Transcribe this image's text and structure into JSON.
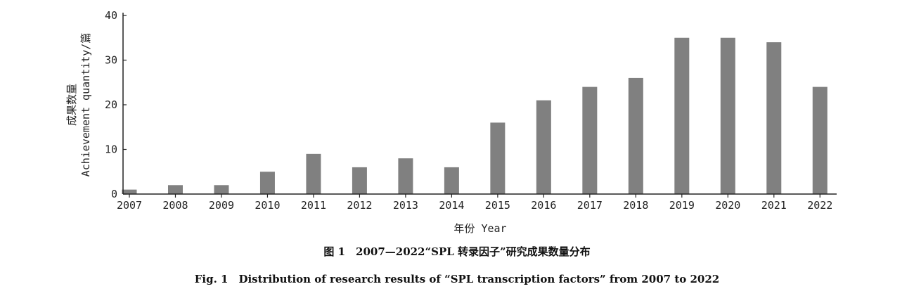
{
  "chart_data": {
    "type": "bar",
    "categories": [
      "2007",
      "2008",
      "2009",
      "2010",
      "2011",
      "2012",
      "2013",
      "2014",
      "2015",
      "2016",
      "2017",
      "2018",
      "2019",
      "2020",
      "2021",
      "2022"
    ],
    "values": [
      1,
      2,
      2,
      5,
      9,
      6,
      8,
      6,
      16,
      21,
      24,
      26,
      35,
      35,
      34,
      24
    ],
    "title": "",
    "xlabel": "年份 Year",
    "ylabel": "成果数量 Achievement quantity/篇",
    "ylim": [
      0,
      40
    ],
    "yticks": [
      0,
      10,
      20,
      30,
      40
    ],
    "grid": false,
    "bar_color": "#808080",
    "axis_color": "#222222"
  },
  "caption": {
    "cn": "图 1　2007—2022“SPL 转录因子”研究成果数量分布",
    "en": "Fig. 1　Distribution of research results of “SPL transcription factors” from 2007 to 2022"
  }
}
